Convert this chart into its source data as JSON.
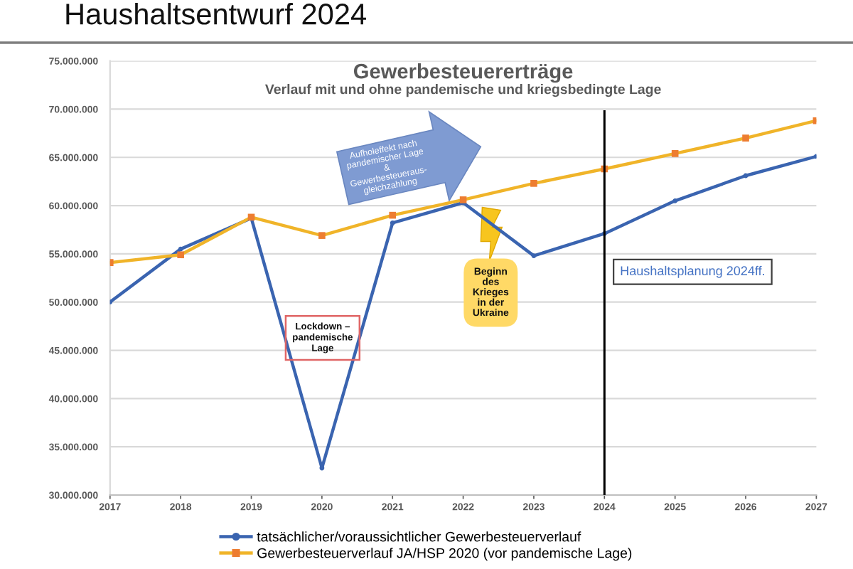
{
  "chart_data": {
    "type": "line",
    "title": "Gewerbesteuererträge",
    "subtitle": "Verlauf mit und ohne pandemische und kriegsbedingte Lage",
    "x": [
      2017,
      2018,
      2019,
      2020,
      2021,
      2022,
      2023,
      2024,
      2025,
      2026,
      2027
    ],
    "series": [
      {
        "name": "tatsächlicher/voraussichtlicher Gewerbesteuerverlauf",
        "color": "#3a64b0",
        "marker": "circle",
        "values": [
          50000000,
          55500000,
          58700000,
          32800000,
          58200000,
          60300000,
          54800000,
          57100000,
          60500000,
          63100000,
          65100000
        ]
      },
      {
        "name": "Gewerbesteuerverlauf JA/HSP 2020 (vor pandemische Lage)",
        "color": "#f0b429",
        "colors": [
          "#ed7d31",
          "#ed7d31",
          "#ed7d31",
          "#ed7d31",
          "#ed7d31",
          "#ed7d31",
          "#ed7d31",
          "#ed7d31",
          "#ed7d31",
          "#ed7d31",
          "#ed7d31"
        ],
        "marker": "square",
        "values": [
          54100000,
          54900000,
          58800000,
          56900000,
          59000000,
          60600000,
          62300000,
          63800000,
          65400000,
          67000000,
          68800000
        ]
      }
    ],
    "xlim": [
      2017,
      2027
    ],
    "xticks": [
      2017,
      2018,
      2019,
      2020,
      2021,
      2022,
      2023,
      2024,
      2025,
      2026,
      2027
    ],
    "ylim": [
      30000000,
      75000000
    ],
    "yticks": [
      {
        "value": 30000000,
        "label": "30.000.000"
      },
      {
        "value": 35000000,
        "label": "35.000.000"
      },
      {
        "value": 40000000,
        "label": "40.000.000"
      },
      {
        "value": 45000000,
        "label": "45.000.000"
      },
      {
        "value": 50000000,
        "label": "50.000.000"
      },
      {
        "value": 55000000,
        "label": "55.000.000"
      },
      {
        "value": 60000000,
        "label": "60.000.000"
      },
      {
        "value": 65000000,
        "label": "65.000.000"
      },
      {
        "value": 70000000,
        "label": "70.000.000"
      },
      {
        "value": 75000000,
        "label": "75.000.000"
      }
    ],
    "grid": "y",
    "legend": "bottom",
    "line_style": "solid",
    "ref_lines": [
      {
        "axis": "x",
        "value": 2024,
        "label": "Haushaltsplanung 2024ff.",
        "color": "#000000"
      }
    ],
    "annotations": [
      "Haushaltsentwurf 2024",
      "Lockdown –\npandemische\nLage",
      "Aufholeffekt nach\npandemischer Lage\n&\nGewerbesteueraus-\ngleichzahlung",
      "Beginn\ndes\nKrieges\nin der\nUkraine"
    ]
  }
}
